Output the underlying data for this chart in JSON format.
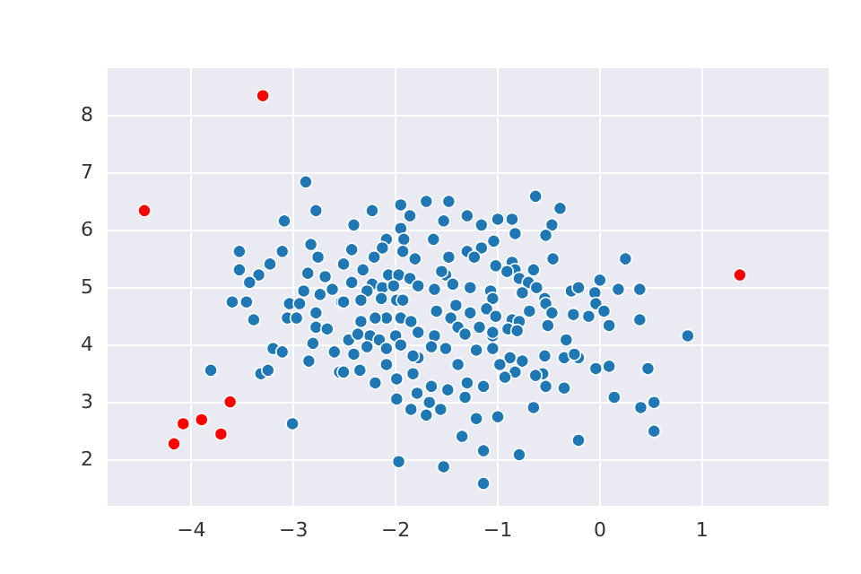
{
  "chart_data": {
    "type": "scatter",
    "xlim": [
      -4.82,
      2.24
    ],
    "ylim": [
      1.19,
      8.81
    ],
    "xticks": [
      -4,
      -3,
      -2,
      -1,
      0,
      1
    ],
    "yticks": [
      2,
      3,
      4,
      5,
      6,
      7,
      8
    ],
    "grid": true,
    "marker": "circle",
    "series": [
      {
        "color": "#1f77b4",
        "x": [
          -2.88,
          -2.78,
          -3.09,
          -2.41,
          -3.53,
          -3.11,
          -2.83,
          -2.76,
          -2.43,
          -3.53,
          -3.23,
          -3.34,
          -3.43,
          -2.86,
          -2.69,
          -2.51,
          -2.9,
          -2.74,
          -2.62,
          -2.53,
          -3.6,
          -3.46,
          -3.39,
          -3.04,
          -2.94,
          -3.06,
          -2.97,
          -2.78,
          -2.78,
          -2.67,
          -2.81,
          -2.6,
          -3.2,
          -3.11,
          -2.85,
          -3.32,
          -3.25,
          -3.81,
          -3.01,
          -2.55,
          -2.46,
          -2.23,
          -1.95,
          -1.7,
          -1.48,
          -1.86,
          -1.53,
          -1.95,
          -1.3,
          -1.16,
          -1.0,
          -1.63,
          -2.09,
          -1.92,
          -2.13,
          -2.21,
          -1.93,
          -1.81,
          -1.48,
          -1.3,
          -1.16,
          -1.23,
          -1.04,
          -2.32,
          -2.07,
          -1.97,
          -1.86,
          -1.78,
          -2.23,
          -2.43,
          -2.28,
          -2.13,
          -2.02,
          -2.14,
          -1.99,
          -1.93,
          -2.51,
          -2.34,
          -1.62,
          -1.51,
          -1.44,
          -1.55,
          -1.27,
          -1.07,
          -1.41,
          -1.27,
          -1.6,
          -1.46,
          -2.09,
          -2.34,
          -2.2,
          -1.95,
          -1.85,
          -2.37,
          -2.25,
          -2.16,
          -2.0,
          -1.78,
          -1.62,
          -1.39,
          -1.32,
          -1.18,
          -1.05,
          -1.05,
          -1.21,
          -1.39,
          -1.51,
          -1.65,
          -1.78,
          -1.83,
          -1.95,
          -2.09,
          -2.09,
          -2.28,
          -2.41,
          -2.35,
          -2.2,
          -1.99,
          -1.83,
          -1.65,
          -1.79,
          -1.99,
          -1.49,
          -1.3,
          -1.32,
          -1.14,
          -1.67,
          -1.56,
          -1.85,
          -1.7,
          -1.21,
          -1.0,
          -1.35,
          -1.14,
          -1.97,
          -1.53,
          -1.14,
          -2.51,
          -0.63,
          -0.39,
          -0.47,
          -0.53,
          -0.86,
          -0.83,
          -0.46,
          -0.65,
          -0.86,
          -0.83,
          -0.91,
          -1.02,
          -0.79,
          -0.7,
          -0.62,
          -0.76,
          -0.54,
          -0.53,
          -0.47,
          -0.51,
          -0.69,
          -1.05,
          -1.11,
          -1.02,
          -0.86,
          -0.79,
          -0.9,
          -0.81,
          -1.05,
          -0.28,
          -0.21,
          -0.05,
          0.0,
          0.18,
          0.25,
          0.39,
          0.39,
          -0.04,
          0.04,
          0.09,
          -0.26,
          -0.11,
          -0.33,
          -0.21,
          -0.35,
          -0.25,
          -0.54,
          -0.56,
          -0.63,
          -0.35,
          -0.53,
          -0.83,
          -0.93,
          -0.88,
          -0.76,
          -0.98,
          -0.04,
          0.09,
          0.14,
          0.4,
          -0.65,
          -0.21,
          -0.79,
          0.86,
          0.47,
          0.53,
          0.53
        ],
        "values": [
          6.83,
          6.33,
          6.15,
          6.08,
          5.62,
          5.62,
          5.74,
          5.52,
          5.65,
          5.3,
          5.4,
          5.21,
          5.08,
          5.24,
          5.18,
          5.4,
          4.93,
          4.87,
          4.96,
          4.74,
          4.74,
          4.74,
          4.43,
          4.71,
          4.71,
          4.46,
          4.46,
          4.55,
          4.3,
          4.27,
          4.02,
          3.87,
          3.93,
          3.87,
          3.71,
          3.49,
          3.55,
          3.55,
          2.62,
          3.52,
          4.08,
          6.33,
          6.43,
          6.49,
          6.49,
          6.24,
          6.15,
          6.02,
          6.24,
          6.08,
          6.18,
          5.83,
          5.83,
          5.83,
          5.68,
          5.52,
          5.62,
          5.49,
          5.52,
          5.62,
          5.68,
          5.52,
          5.8,
          5.3,
          5.21,
          5.21,
          5.15,
          5.02,
          5.05,
          5.08,
          4.93,
          4.99,
          5.02,
          4.8,
          4.77,
          4.77,
          4.74,
          4.77,
          4.96,
          5.21,
          5.05,
          5.27,
          4.99,
          4.93,
          4.68,
          4.55,
          4.58,
          4.46,
          4.46,
          4.4,
          4.46,
          4.46,
          4.4,
          4.18,
          4.15,
          4.08,
          4.15,
          4.21,
          4.15,
          4.3,
          4.18,
          4.3,
          4.15,
          3.93,
          3.9,
          3.65,
          3.93,
          3.96,
          3.77,
          3.8,
          3.99,
          3.93,
          3.65,
          3.96,
          3.83,
          3.55,
          3.33,
          3.4,
          3.49,
          3.27,
          3.15,
          3.05,
          3.21,
          3.33,
          3.08,
          3.27,
          2.99,
          2.87,
          2.87,
          2.77,
          2.71,
          2.74,
          2.4,
          2.15,
          1.96,
          1.87,
          1.58,
          3.52,
          6.58,
          6.37,
          6.08,
          5.9,
          6.18,
          5.93,
          5.49,
          5.3,
          5.43,
          5.3,
          5.27,
          5.37,
          5.15,
          5.08,
          4.99,
          4.9,
          4.8,
          4.71,
          4.55,
          4.33,
          4.58,
          4.8,
          4.62,
          4.49,
          4.43,
          4.4,
          4.27,
          4.24,
          4.21,
          4.93,
          4.99,
          4.9,
          5.12,
          4.96,
          5.49,
          4.96,
          4.43,
          4.71,
          4.58,
          4.33,
          4.52,
          4.49,
          4.08,
          3.77,
          3.77,
          3.83,
          3.8,
          3.49,
          3.46,
          3.24,
          3.27,
          3.52,
          3.43,
          3.77,
          3.71,
          3.65,
          3.58,
          3.62,
          3.08,
          2.9,
          2.9,
          2.33,
          2.08,
          4.15,
          3.58,
          2.99,
          2.49
        ]
      },
      {
        "color": "#ff0000",
        "x": [
          -3.3,
          -4.46,
          1.37,
          -3.62,
          -4.08,
          -3.9,
          -3.71,
          -4.17
        ],
        "values": [
          8.33,
          6.33,
          5.21,
          3.0,
          2.62,
          2.69,
          2.44,
          2.27
        ]
      }
    ]
  }
}
